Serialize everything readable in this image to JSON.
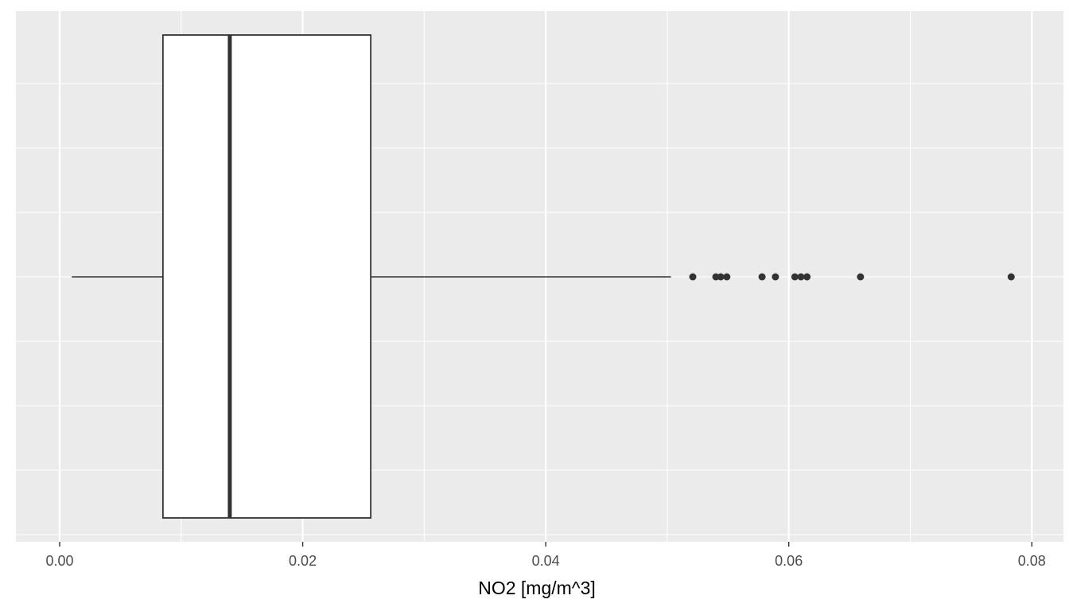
{
  "chart_data": {
    "type": "boxplot",
    "orientation": "horizontal",
    "xlabel": "NO2 [mg/m^3]",
    "ylabel": "",
    "title": "",
    "xlim": [
      -0.0036,
      0.0826
    ],
    "x_ticks": [
      0.0,
      0.02,
      0.04,
      0.06,
      0.08
    ],
    "x_tick_labels": [
      "0.00",
      "0.02",
      "0.04",
      "0.06",
      "0.08"
    ],
    "box": {
      "whisker_low": 0.001,
      "q1": 0.0085,
      "median": 0.014,
      "q3": 0.0256,
      "whisker_high": 0.0503
    },
    "outliers": [
      0.0521,
      0.054,
      0.0544,
      0.0549,
      0.0578,
      0.0589,
      0.0605,
      0.061,
      0.0615,
      0.0659,
      0.0783
    ],
    "grid": true,
    "background": "#ebebeb",
    "gridline_color": "#ffffff",
    "box_fill": "#ffffff",
    "line_color": "#333333"
  }
}
